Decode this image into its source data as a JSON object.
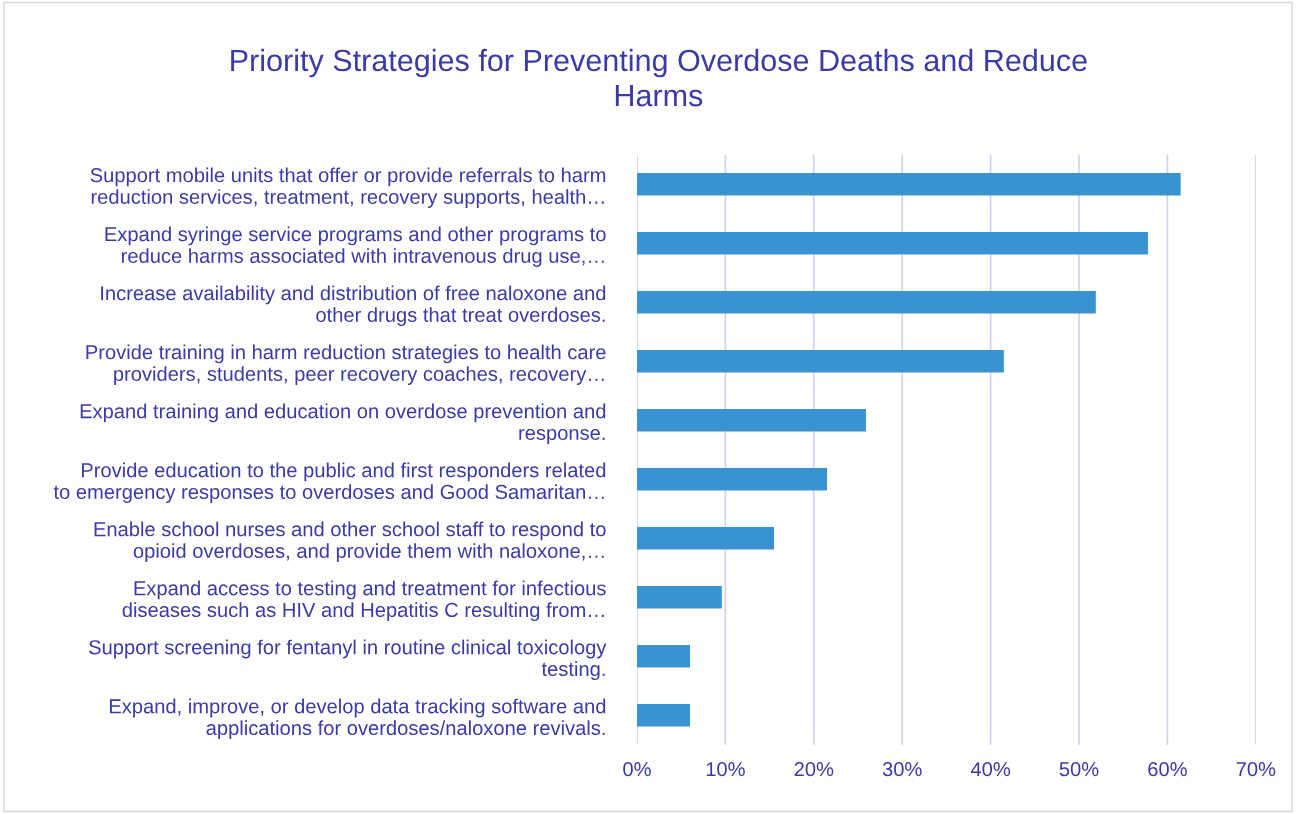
{
  "chart_data": {
    "type": "bar",
    "orientation": "horizontal",
    "title": "Priority Strategies for Preventing Overdose Deaths and Reduce\nHarms",
    "categories": [
      "Support mobile units that offer or provide referrals to harm\nreduction services, treatment, recovery supports, health…",
      "Expand syringe service programs and other programs to\nreduce harms associated with intravenous drug use,…",
      "Increase availability and distribution of free naloxone and\nother drugs that treat overdoses.",
      "Provide training in harm reduction strategies to health care\nproviders, students, peer recovery coaches, recovery…",
      "Expand training and education on overdose prevention and\nresponse.",
      "Provide education to the public and first responders related\nto emergency responses to overdoses and Good Samaritan…",
      "Enable school nurses and other school staff to respond to\nopioid overdoses, and provide them with naloxone,…",
      "Expand access to testing and treatment for infectious\ndiseases such as HIV and Hepatitis C resulting from…",
      "Support screening for fentanyl in routine clinical toxicology\ntesting.",
      "Expand, improve, or develop data tracking software and\napplications for overdoses/naloxone revivals."
    ],
    "values": [
      61.5,
      57.8,
      51.9,
      41.5,
      25.9,
      21.5,
      15.5,
      9.6,
      6.0,
      6.0
    ],
    "color": "#3a93d1",
    "xlim": [
      0,
      70
    ],
    "xticks": [
      {
        "value": 0,
        "label": "0%"
      },
      {
        "value": 10,
        "label": "10%"
      },
      {
        "value": 20,
        "label": "20%"
      },
      {
        "value": 30,
        "label": "30%"
      },
      {
        "value": 40,
        "label": "40%"
      },
      {
        "value": 50,
        "label": "50%"
      },
      {
        "value": 60,
        "label": "60%"
      },
      {
        "value": 70,
        "label": "70%"
      }
    ],
    "grid": "x"
  }
}
